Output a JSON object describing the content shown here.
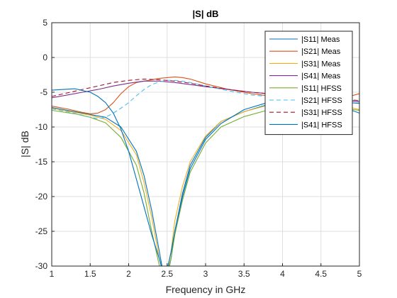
{
  "chart_data": {
    "type": "line",
    "title": "|S| dB",
    "xlabel": "Frequency in GHz",
    "ylabel": "|S| dB",
    "xlim": [
      1,
      5
    ],
    "ylim": [
      -30,
      5
    ],
    "xticks": [
      1,
      1.5,
      2,
      2.5,
      3,
      3.5,
      4,
      4.5,
      5
    ],
    "xtick_labels": [
      "1",
      "1.5",
      "2",
      "2.5",
      "3",
      "3.5",
      "4",
      "4.5",
      "5"
    ],
    "yticks": [
      5,
      0,
      -5,
      -10,
      -15,
      -20,
      -25,
      -30
    ],
    "ytick_labels": [
      "5",
      "0",
      "-5",
      "-10",
      "-15",
      "-20",
      "-25",
      "-30"
    ],
    "grid": true,
    "legend_position": "top-right",
    "series": [
      {
        "name": "|S11| Meas",
        "color": "#0072BD",
        "dash": "solid",
        "x": [
          1.0,
          1.3,
          1.5,
          1.7,
          1.9,
          2.1,
          2.2,
          2.3,
          2.4,
          2.45,
          2.5,
          2.55,
          2.6,
          2.7,
          2.8,
          3.0,
          3.2,
          3.5,
          3.8,
          4.0,
          4.3,
          4.6,
          5.0
        ],
        "y": [
          -7.2,
          -7.8,
          -8.2,
          -8.6,
          -10.0,
          -13.5,
          -17.0,
          -22.0,
          -28.0,
          -31.0,
          -31.5,
          -29.0,
          -25.0,
          -19.5,
          -15.5,
          -11.5,
          -9.2,
          -7.8,
          -6.8,
          -6.3,
          -6.0,
          -6.4,
          -8.0
        ]
      },
      {
        "name": "|S21| Meas",
        "color": "#D95319",
        "dash": "solid",
        "x": [
          1.0,
          1.2,
          1.4,
          1.5,
          1.6,
          1.7,
          1.8,
          1.9,
          2.0,
          2.1,
          2.2,
          2.3,
          2.4,
          2.5,
          2.6,
          2.7,
          2.8,
          3.0,
          3.3,
          3.6,
          4.0,
          4.4,
          4.7,
          5.0
        ],
        "y": [
          -7.0,
          -7.4,
          -7.9,
          -8.1,
          -8.0,
          -7.5,
          -6.5,
          -5.2,
          -4.2,
          -3.6,
          -3.4,
          -3.2,
          -3.0,
          -2.9,
          -2.8,
          -2.9,
          -3.1,
          -3.8,
          -4.6,
          -5.2,
          -5.8,
          -6.0,
          -6.1,
          -5.2
        ]
      },
      {
        "name": "|S31| Meas",
        "color": "#EDB120",
        "dash": "solid",
        "x": [
          1.0,
          1.3,
          1.5,
          1.7,
          1.9,
          2.1,
          2.2,
          2.3,
          2.4,
          2.45,
          2.5,
          2.55,
          2.6,
          2.7,
          2.8,
          3.0,
          3.2,
          3.5,
          3.8,
          4.0,
          4.3,
          4.6,
          5.0
        ],
        "y": [
          -7.3,
          -7.9,
          -8.3,
          -8.9,
          -10.5,
          -14.0,
          -18.0,
          -23.0,
          -29.0,
          -31.5,
          -31.0,
          -28.0,
          -23.5,
          -18.5,
          -15.0,
          -11.3,
          -9.2,
          -7.8,
          -6.9,
          -6.5,
          -6.2,
          -6.5,
          -7.5
        ]
      },
      {
        "name": "|S41| Meas",
        "color": "#7E2F8E",
        "dash": "solid",
        "x": [
          1.0,
          1.2,
          1.4,
          1.6,
          1.8,
          2.0,
          2.2,
          2.4,
          2.6,
          2.8,
          3.0,
          3.3,
          3.6,
          4.0,
          4.4,
          4.7,
          5.0
        ],
        "y": [
          -5.8,
          -5.4,
          -5.0,
          -4.6,
          -4.1,
          -3.7,
          -3.4,
          -3.4,
          -3.6,
          -3.9,
          -4.2,
          -4.6,
          -5.0,
          -5.4,
          -5.8,
          -6.0,
          -6.4
        ]
      },
      {
        "name": "|S11| HFSS",
        "color": "#77AC30",
        "dash": "solid",
        "x": [
          1.0,
          1.3,
          1.5,
          1.7,
          1.9,
          2.1,
          2.2,
          2.3,
          2.4,
          2.45,
          2.5,
          2.55,
          2.6,
          2.7,
          2.8,
          3.0,
          3.2,
          3.5,
          3.8,
          4.0,
          4.3,
          4.6,
          5.0
        ],
        "y": [
          -7.6,
          -8.1,
          -8.6,
          -9.4,
          -11.5,
          -15.5,
          -19.5,
          -25.0,
          -30.0,
          -31.5,
          -31.0,
          -29.0,
          -25.5,
          -20.5,
          -16.5,
          -12.3,
          -10.0,
          -8.5,
          -7.6,
          -7.2,
          -7.0,
          -7.1,
          -7.6
        ]
      },
      {
        "name": "|S21| HFSS",
        "color": "#4DBEEE",
        "dash": "dashed",
        "x": [
          1.0,
          1.2,
          1.4,
          1.5,
          1.6,
          1.7,
          1.8,
          1.9,
          2.0,
          2.1,
          2.2,
          2.3,
          2.4,
          2.5,
          2.6,
          2.7,
          2.8,
          3.0,
          3.3,
          3.6,
          4.0,
          4.4,
          4.7,
          5.0
        ],
        "y": [
          -7.4,
          -7.8,
          -8.3,
          -8.6,
          -8.8,
          -8.6,
          -8.0,
          -7.3,
          -6.5,
          -5.5,
          -4.6,
          -3.9,
          -3.5,
          -3.3,
          -3.3,
          -3.4,
          -3.6,
          -4.1,
          -4.8,
          -5.4,
          -5.8,
          -6.0,
          -6.1,
          -6.2
        ]
      },
      {
        "name": "|S31| HFSS",
        "color": "#A2142F",
        "dash": "dashed",
        "x": [
          1.0,
          1.2,
          1.4,
          1.6,
          1.8,
          2.0,
          2.2,
          2.4,
          2.6,
          2.8,
          3.0,
          3.3,
          3.6,
          4.0,
          4.4,
          4.7,
          5.0
        ],
        "y": [
          -5.6,
          -5.1,
          -4.6,
          -4.1,
          -3.6,
          -3.3,
          -3.1,
          -3.2,
          -3.4,
          -3.7,
          -4.1,
          -4.6,
          -5.0,
          -5.4,
          -5.7,
          -5.9,
          -6.2
        ]
      },
      {
        "name": "|S41| HFSS",
        "color": "#0072BD",
        "dash": "solid",
        "x": [
          1.0,
          1.3,
          1.5,
          1.6,
          1.7,
          1.8,
          1.9,
          2.0,
          2.1,
          2.2,
          2.3,
          2.4,
          2.45,
          2.5,
          2.55,
          2.6,
          2.7,
          2.8,
          3.0,
          3.2,
          3.5,
          3.8,
          4.0,
          4.3,
          4.6,
          5.0
        ],
        "y": [
          -4.7,
          -4.5,
          -5.0,
          -5.6,
          -6.5,
          -8.0,
          -10.3,
          -13.5,
          -17.5,
          -21.5,
          -25.5,
          -29.0,
          -31.0,
          -30.5,
          -28.0,
          -25.0,
          -20.0,
          -16.0,
          -11.8,
          -9.5,
          -7.5,
          -6.5,
          -6.1,
          -6.0,
          -6.3,
          -6.6
        ]
      }
    ]
  }
}
